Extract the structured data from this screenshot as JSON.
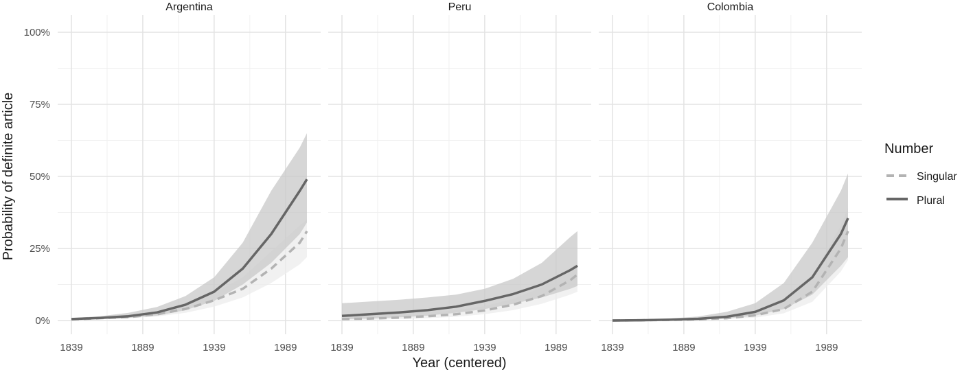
{
  "chart_data": {
    "type": "line",
    "xlabel": "Year (centered)",
    "ylabel": "Probability of definite article",
    "x_ticks": [
      1839,
      1889,
      1939,
      1989
    ],
    "y_ticks": [
      "0%",
      "25%",
      "50%",
      "75%",
      "100%"
    ],
    "xlim": [
      1839,
      2004
    ],
    "ylim": [
      0,
      1
    ],
    "grid": true,
    "legend": {
      "title": "Number",
      "position": "right",
      "entries": [
        {
          "label": "Singular",
          "style": "dashed",
          "color": "#b3b3b3"
        },
        {
          "label": "Plural",
          "style": "solid",
          "color": "#666666"
        }
      ]
    },
    "panels": [
      {
        "title": "Argentina",
        "series": [
          {
            "name": "Singular",
            "x": [
              1839,
              1859,
              1879,
              1899,
              1919,
              1939,
              1959,
              1979,
              1999,
              2004
            ],
            "y": [
              0.004,
              0.008,
              0.012,
              0.022,
              0.04,
              0.07,
              0.11,
              0.18,
              0.27,
              0.31
            ],
            "lower": [
              0.003,
              0.005,
              0.008,
              0.014,
              0.027,
              0.048,
              0.08,
              0.13,
              0.195,
              0.22
            ],
            "upper": [
              0.006,
              0.011,
              0.018,
              0.032,
              0.056,
              0.095,
              0.15,
              0.24,
              0.33,
              0.35
            ]
          },
          {
            "name": "Plural",
            "x": [
              1839,
              1859,
              1879,
              1899,
              1919,
              1939,
              1959,
              1979,
              1999,
              2004
            ],
            "y": [
              0.005,
              0.009,
              0.015,
              0.028,
              0.055,
              0.1,
              0.18,
              0.3,
              0.45,
              0.49
            ],
            "lower": [
              0.003,
              0.005,
              0.009,
              0.017,
              0.036,
              0.068,
              0.125,
              0.2,
              0.3,
              0.34
            ],
            "upper": [
              0.008,
              0.015,
              0.027,
              0.047,
              0.085,
              0.15,
              0.27,
              0.45,
              0.6,
              0.65
            ]
          }
        ]
      },
      {
        "title": "Peru",
        "series": [
          {
            "name": "Singular",
            "x": [
              1839,
              1859,
              1879,
              1899,
              1919,
              1939,
              1959,
              1979,
              1999,
              2004
            ],
            "y": [
              0.005,
              0.007,
              0.01,
              0.015,
              0.022,
              0.035,
              0.055,
              0.085,
              0.14,
              0.16
            ],
            "lower": [
              0.002,
              0.003,
              0.005,
              0.008,
              0.013,
              0.022,
              0.036,
              0.058,
              0.09,
              0.1
            ],
            "upper": [
              0.015,
              0.018,
              0.022,
              0.028,
              0.036,
              0.05,
              0.075,
              0.115,
              0.18,
              0.2
            ]
          },
          {
            "name": "Plural",
            "x": [
              1839,
              1859,
              1879,
              1899,
              1919,
              1939,
              1959,
              1979,
              1999,
              2004
            ],
            "y": [
              0.016,
              0.022,
              0.028,
              0.036,
              0.048,
              0.068,
              0.092,
              0.125,
              0.175,
              0.19
            ],
            "lower": [
              0.004,
              0.007,
              0.011,
              0.017,
              0.027,
              0.04,
              0.058,
              0.08,
              0.11,
              0.12
            ],
            "upper": [
              0.06,
              0.066,
              0.072,
              0.08,
              0.09,
              0.11,
              0.145,
              0.2,
              0.29,
              0.31
            ]
          }
        ]
      },
      {
        "title": "Colombia",
        "series": [
          {
            "name": "Singular",
            "x": [
              1839,
              1859,
              1879,
              1899,
              1919,
              1939,
              1959,
              1979,
              1999,
              2004
            ],
            "y": [
              0.0,
              0.001,
              0.002,
              0.004,
              0.008,
              0.018,
              0.04,
              0.1,
              0.25,
              0.31
            ],
            "lower": [
              0.0,
              0.0,
              0.001,
              0.002,
              0.005,
              0.01,
              0.025,
              0.065,
              0.17,
              0.21
            ],
            "upper": [
              0.001,
              0.002,
              0.004,
              0.008,
              0.014,
              0.03,
              0.065,
              0.15,
              0.33,
              0.39
            ]
          },
          {
            "name": "Plural",
            "x": [
              1839,
              1859,
              1879,
              1899,
              1919,
              1939,
              1959,
              1979,
              1999,
              2004
            ],
            "y": [
              0.0,
              0.001,
              0.003,
              0.006,
              0.013,
              0.03,
              0.07,
              0.15,
              0.3,
              0.355
            ],
            "lower": [
              0.0,
              0.0,
              0.001,
              0.003,
              0.007,
              0.017,
              0.04,
              0.09,
              0.19,
              0.22
            ],
            "upper": [
              0.001,
              0.003,
              0.007,
              0.014,
              0.03,
              0.06,
              0.13,
              0.27,
              0.45,
              0.51
            ]
          }
        ]
      }
    ]
  }
}
